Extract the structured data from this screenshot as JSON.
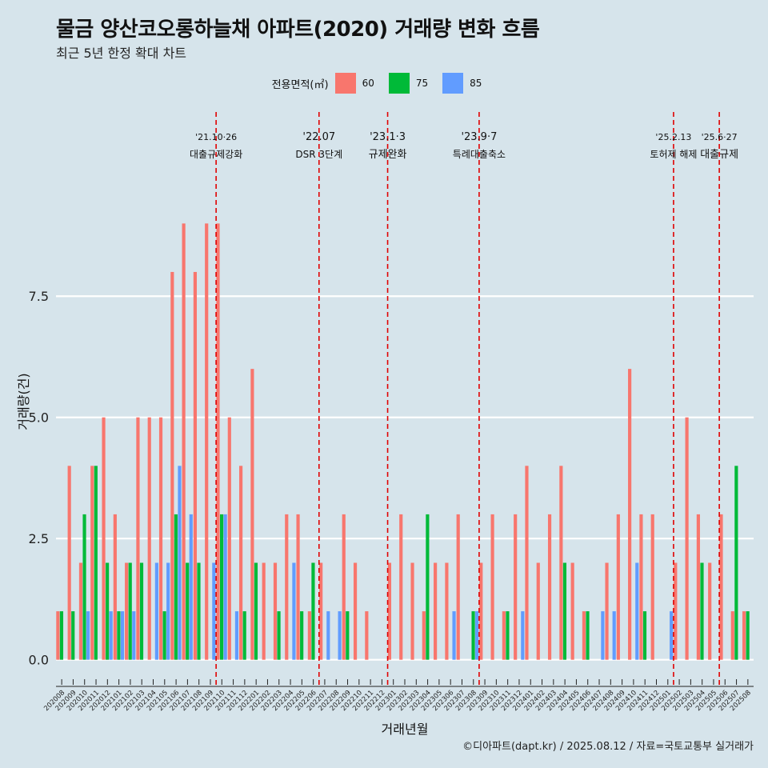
{
  "title": "물금 양산코오롱하늘채 아파트(2020) 거래량 변화 흐름",
  "subtitle": "최근 5년 한정 확대 차트",
  "caption": "©디아파트(dapt.kr) / 2025.08.12 / 자료=국토교통부 실거래가",
  "legend": {
    "title": "전용면적(㎡)",
    "items": [
      {
        "label": "60",
        "color": "#F8766D"
      },
      {
        "label": "75",
        "color": "#00BA38"
      },
      {
        "label": "85",
        "color": "#619CFF"
      }
    ]
  },
  "chart_data": {
    "type": "bar",
    "xlabel": "거래년월",
    "ylabel": "거래량(건)",
    "ylim": [
      -0.55,
      11.3
    ],
    "yticks": [
      0.0,
      2.5,
      5.0,
      7.5
    ],
    "ytick_labels": [
      "0.0",
      "2.5",
      "5.0",
      "7.5"
    ],
    "grid": true,
    "legend_position": "top",
    "categories": [
      "202008",
      "202009",
      "202010",
      "202011",
      "202012",
      "202101",
      "202102",
      "202103",
      "202104",
      "202105",
      "202106",
      "202107",
      "202108",
      "202109",
      "202110",
      "202111",
      "202112",
      "202201",
      "202202",
      "202203",
      "202204",
      "202205",
      "202206",
      "202207",
      "202208",
      "202209",
      "202210",
      "202211",
      "202212",
      "202301",
      "202302",
      "202303",
      "202304",
      "202305",
      "202306",
      "202307",
      "202308",
      "202309",
      "202310",
      "202311",
      "202312",
      "202401",
      "202402",
      "202403",
      "202404",
      "202405",
      "202406",
      "202407",
      "202408",
      "202409",
      "202410",
      "202411",
      "202412",
      "202501",
      "202502",
      "202503",
      "202504",
      "202505",
      "202506",
      "202507",
      "202508"
    ],
    "series": [
      {
        "name": "60",
        "color": "#F8766D",
        "values": [
          1,
          4,
          2,
          4,
          5,
          3,
          2,
          5,
          5,
          5,
          8,
          9,
          8,
          9,
          9,
          5,
          4,
          6,
          2,
          2,
          3,
          3,
          1,
          2,
          0,
          3,
          2,
          1,
          0,
          2,
          3,
          2,
          1,
          2,
          2,
          3,
          0,
          2,
          3,
          1,
          3,
          4,
          2,
          3,
          4,
          2,
          1,
          0,
          2,
          3,
          6,
          3,
          3,
          0,
          2,
          5,
          3,
          2,
          3,
          1,
          1
        ]
      },
      {
        "name": "75",
        "color": "#00BA38",
        "values": [
          1,
          1,
          3,
          4,
          2,
          1,
          2,
          2,
          0,
          1,
          3,
          2,
          2,
          0,
          3,
          0,
          1,
          2,
          0,
          1,
          0,
          1,
          2,
          0,
          0,
          1,
          0,
          0,
          0,
          0,
          0,
          0,
          3,
          0,
          0,
          0,
          1,
          0,
          0,
          1,
          0,
          0,
          0,
          0,
          2,
          0,
          1,
          0,
          0,
          0,
          0,
          1,
          0,
          0,
          0,
          0,
          2,
          0,
          0,
          4,
          1
        ]
      },
      {
        "name": "85",
        "color": "#619CFF",
        "values": [
          0,
          0,
          1,
          0,
          1,
          1,
          1,
          0,
          2,
          2,
          4,
          3,
          0,
          2,
          3,
          1,
          0,
          0,
          0,
          0,
          2,
          0,
          0,
          1,
          1,
          0,
          0,
          0,
          0,
          0,
          0,
          0,
          0,
          0,
          1,
          0,
          1,
          0,
          0,
          0,
          1,
          0,
          0,
          0,
          0,
          0,
          0,
          1,
          1,
          0,
          2,
          0,
          0,
          1,
          0,
          0,
          0,
          0,
          0,
          0,
          0
        ]
      }
    ],
    "events": [
      {
        "line1": "'21.10·26",
        "line2": "대출규제강화",
        "pos": 14.0
      },
      {
        "line1": "'22.07",
        "line2": "DSR 3단계",
        "pos": 23.0
      },
      {
        "line1": "'23.1·3",
        "line2": "규제완화",
        "pos": 29.0
      },
      {
        "line1": "'23.9·7",
        "line2": "특례대출축소",
        "pos": 37.0
      },
      {
        "line1": "'25.2.13",
        "line2": "토허제 해제",
        "pos": 54.0
      },
      {
        "line1": "'25.6·27",
        "line2": "대출규제",
        "pos": 58.0
      }
    ]
  }
}
